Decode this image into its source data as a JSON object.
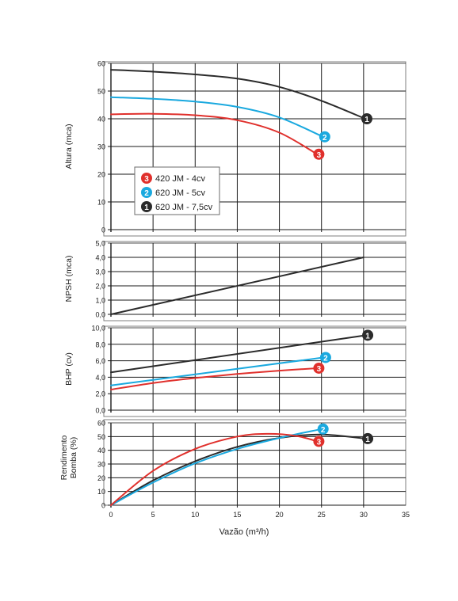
{
  "colors": {
    "red": "#e0302c",
    "blue": "#1aa9df",
    "black": "#2b2b2b",
    "grid": "#1a1a1a",
    "frame": "#7f7f7f"
  },
  "x_axis": {
    "label": "Vazão (m³/h)",
    "range": [
      0,
      35
    ],
    "ticks": [
      0,
      5,
      10,
      15,
      20,
      25,
      30,
      35
    ],
    "tick_labels": [
      "0",
      "5",
      "10",
      "15",
      "20",
      "25",
      "30",
      "35"
    ]
  },
  "legend": {
    "placement": "left-middle of top panel",
    "items": [
      {
        "marker": "3",
        "label": "420 JM - 4cv",
        "color": "#e0302c"
      },
      {
        "marker": "2",
        "label": "620 JM - 5cv",
        "color": "#1aa9df"
      },
      {
        "marker": "1",
        "label": "620 JM - 7,5cv",
        "color": "#2b2b2b"
      }
    ]
  },
  "chart_data": [
    {
      "type": "line",
      "ylabel": "Altura (mca)",
      "xlabel": "",
      "ylim": [
        0,
        60
      ],
      "yticks": [
        0,
        10,
        20,
        30,
        40,
        50,
        60
      ],
      "ytick_labels": [
        "0",
        "10",
        "20",
        "30",
        "40",
        "50",
        "60"
      ],
      "series": [
        {
          "name": "620 JM - 7,5cv",
          "marker": "1",
          "color": "#2b2b2b",
          "x": [
            0,
            5,
            10,
            15,
            20,
            25,
            30.2
          ],
          "y": [
            57.7,
            57.0,
            56.0,
            54.5,
            51.5,
            46.5,
            40
          ]
        },
        {
          "name": "620 JM - 5cv",
          "marker": "2",
          "color": "#1aa9df",
          "x": [
            0,
            5,
            10,
            15,
            20,
            25.2
          ],
          "y": [
            47.8,
            47.2,
            46.2,
            44.3,
            40.5,
            33.5
          ]
        },
        {
          "name": "420 JM - 4cv",
          "marker": "3",
          "color": "#e0302c",
          "x": [
            0,
            5,
            10,
            15,
            20,
            24.5
          ],
          "y": [
            41.6,
            41.8,
            41.3,
            39.5,
            35,
            27.2
          ]
        }
      ]
    },
    {
      "type": "line",
      "ylabel": "NPSH (mca)",
      "xlabel": "",
      "ylim": [
        0,
        5
      ],
      "yticks": [
        0,
        1,
        2,
        3,
        4,
        5
      ],
      "ytick_labels": [
        "0,0",
        "1,0",
        "2,0",
        "3,0",
        "4,0",
        "5,0"
      ],
      "series": [
        {
          "name": "",
          "color": "#2b2b2b",
          "x": [
            0,
            30
          ],
          "y": [
            0,
            4.0
          ]
        }
      ]
    },
    {
      "type": "line",
      "ylabel": "BHP (cv)",
      "xlabel": "",
      "ylim": [
        0,
        10
      ],
      "yticks": [
        0,
        2,
        4,
        6,
        8,
        10
      ],
      "ytick_labels": [
        "0,0",
        "2,0",
        "4,0",
        "6,0",
        "8,0",
        "10,0"
      ],
      "series": [
        {
          "name": "620 JM - 7,5cv",
          "marker": "1",
          "color": "#2b2b2b",
          "x": [
            0,
            30.3
          ],
          "y": [
            4.6,
            9.1
          ]
        },
        {
          "name": "620 JM - 5cv",
          "marker": "2",
          "color": "#1aa9df",
          "x": [
            0,
            25.3
          ],
          "y": [
            3.0,
            6.4
          ]
        },
        {
          "name": "420 JM - 4cv",
          "marker": "3",
          "color": "#e0302c",
          "x": [
            0,
            5,
            10,
            15,
            20,
            24.5
          ],
          "y": [
            2.5,
            3.3,
            3.9,
            4.4,
            4.8,
            5.1
          ]
        }
      ]
    },
    {
      "type": "line",
      "ylabel": "Rendimento Bomba (%)",
      "ylabel_lines": [
        "Rendimento",
        "Bomba (%)"
      ],
      "xlabel": "Vazão (m³/h)",
      "ylim": [
        0,
        60
      ],
      "yticks": [
        0,
        10,
        20,
        30,
        40,
        50,
        60
      ],
      "ytick_labels": [
        "0",
        "10",
        "20",
        "30",
        "40",
        "50",
        "60"
      ],
      "series": [
        {
          "name": "620 JM - 7,5cv",
          "marker": "1",
          "color": "#2b2b2b",
          "x": [
            0,
            5,
            10,
            15,
            20,
            25,
            30.3
          ],
          "y": [
            0,
            18,
            32,
            42.5,
            49,
            51.5,
            48.5
          ]
        },
        {
          "name": "620 JM - 5cv",
          "marker": "2",
          "color": "#1aa9df",
          "x": [
            0,
            5,
            10,
            15,
            20,
            25.0
          ],
          "y": [
            0,
            16.5,
            30.5,
            41,
            49,
            55.5
          ]
        },
        {
          "name": "420 JM - 4cv",
          "marker": "3",
          "color": "#e0302c",
          "x": [
            0,
            5,
            10,
            15,
            18.5,
            22,
            24.5
          ],
          "y": [
            0,
            25,
            41,
            50,
            52,
            50.5,
            46.5
          ]
        }
      ]
    }
  ]
}
